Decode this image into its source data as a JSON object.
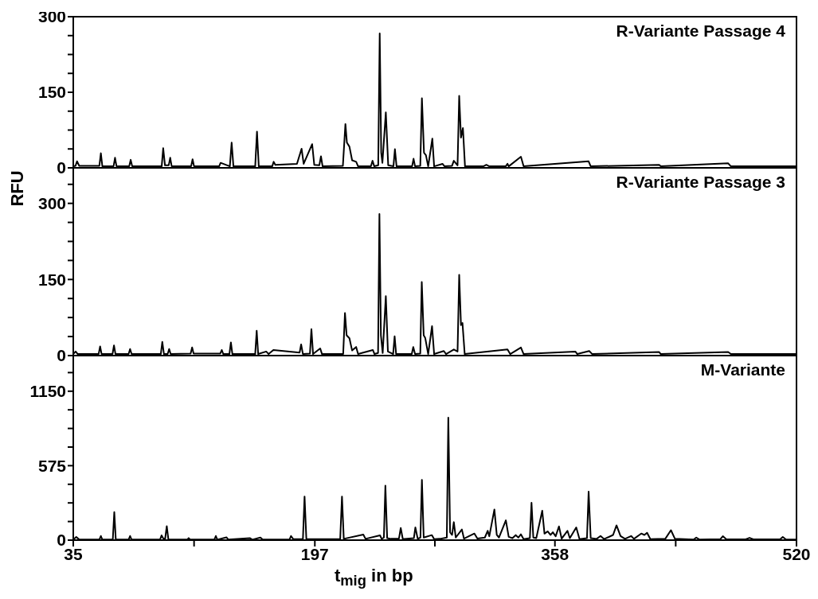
{
  "chart_data": [
    {
      "type": "line",
      "title": "R-Variante Passage 4",
      "xlim": [
        35,
        520
      ],
      "ylim": [
        0,
        300
      ],
      "yticks": [
        0,
        {
          "value": 37.5,
          "label": null
        },
        {
          "value": 75,
          "label": null
        },
        {
          "value": 112.5,
          "label": null
        },
        150,
        {
          "value": 187.5,
          "label": null
        },
        {
          "value": 225,
          "label": null
        },
        {
          "value": 262.5,
          "label": null
        },
        300
      ],
      "tick_labels": "y",
      "series": [
        {
          "color": "#000000",
          "x": [
            35,
            36.5,
            37.5,
            39,
            45,
            52.5,
            53.5,
            54.5,
            62,
            63,
            64,
            72.5,
            73.5,
            74.5,
            94.3,
            95.3,
            96.5,
            99,
            100,
            101,
            114,
            115,
            116,
            132.8,
            133.8,
            140,
            141.2,
            142.4,
            157,
            158.2,
            159.4,
            168.4,
            169.4,
            170.5,
            185,
            188.1,
            189.5,
            195.2,
            196.6,
            200,
            201.1,
            202.2,
            215.8,
            217.5,
            218.5,
            220.2,
            222,
            224.7,
            226,
            234.6,
            235.7,
            236.8,
            239.5,
            240.5,
            241.5,
            242.3,
            244.6,
            246.2,
            249.7,
            250.7,
            251.8,
            262.2,
            263.2,
            264.2,
            267.7,
            268.8,
            270.2,
            271.5,
            273,
            275.8,
            277,
            282.6,
            284,
            289,
            290.2,
            292.7,
            293.8,
            295,
            296.3,
            297.7,
            310,
            312,
            314,
            325,
            326.2,
            327,
            335.2,
            337,
            380.6,
            382,
            427.9,
            429,
            474.2,
            476,
            520
          ],
          "values": [
            3,
            4,
            13,
            4,
            4,
            4,
            29,
            3,
            3,
            20,
            3,
            3,
            16,
            3,
            3,
            39,
            5,
            5,
            20,
            3,
            3,
            17,
            3,
            3,
            10,
            3,
            50,
            3,
            3,
            72,
            3,
            3,
            12,
            6,
            8,
            38,
            8,
            47,
            6,
            5,
            23,
            3,
            4,
            87,
            50,
            42,
            15,
            12,
            3,
            3,
            14,
            3,
            5,
            267,
            30,
            10,
            110,
            5,
            3,
            37,
            3,
            3,
            18,
            3,
            4,
            138,
            30,
            25,
            3,
            58,
            3,
            8,
            3,
            4,
            14,
            5,
            143,
            60,
            79,
            3,
            3,
            6,
            3,
            3,
            8,
            3,
            22,
            3,
            13,
            3,
            6,
            3,
            9,
            3,
            3
          ]
        }
      ]
    },
    {
      "type": "line",
      "title": "R-Variante Passage 3",
      "ylabel": "RFU",
      "xlim": [
        35,
        520
      ],
      "ylim": [
        0,
        370
      ],
      "yticks": [
        0,
        {
          "value": 37.5,
          "label": null
        },
        {
          "value": 75,
          "label": null
        },
        {
          "value": 112.5,
          "label": null
        },
        150,
        {
          "value": 187.5,
          "label": null
        },
        {
          "value": 225,
          "label": null
        },
        {
          "value": 262.5,
          "label": null
        },
        300,
        {
          "value": 337.5,
          "label": null
        }
      ],
      "tick_labels": "y",
      "series": [
        {
          "color": "#000000",
          "x": [
            35,
            36.6,
            38,
            52,
            53,
            54,
            61.3,
            62.3,
            63.3,
            72.1,
            73.1,
            74.1,
            93.7,
            94.7,
            95.8,
            98.3,
            99.3,
            100.3,
            113.7,
            114.7,
            115.7,
            133.6,
            134.6,
            135.6,
            139.7,
            140.7,
            141.7,
            157,
            158,
            159,
            164.4,
            166,
            169.2,
            186.8,
            187.8,
            189,
            193.7,
            194.7,
            195.8,
            200.6,
            201.8,
            216,
            217.2,
            218.3,
            220.2,
            222,
            224.7,
            226,
            235.9,
            237,
            239.4,
            240.3,
            241.3,
            242.5,
            244.6,
            246,
            249.5,
            250.5,
            251.5,
            262,
            263,
            264.2,
            267.7,
            268.7,
            270,
            271,
            273,
            275.6,
            277,
            283.5,
            285,
            290.2,
            292.7,
            293.8,
            295,
            296,
            297.5,
            326.2,
            328,
            335.2,
            337,
            371.7,
            373,
            381,
            383,
            427.9,
            429,
            474.2,
            476,
            520
          ],
          "values": [
            3,
            8,
            3,
            3,
            18,
            3,
            3,
            20,
            3,
            3,
            13,
            3,
            3,
            27,
            3,
            3,
            13,
            3,
            4,
            16,
            4,
            4,
            11,
            3,
            3,
            26,
            3,
            3,
            49,
            3,
            8,
            3,
            11,
            6,
            22,
            3,
            4,
            52,
            3,
            14,
            3,
            3,
            84,
            40,
            34,
            10,
            17,
            3,
            11,
            3,
            5,
            279,
            40,
            5,
            117,
            8,
            3,
            38,
            3,
            3,
            17,
            3,
            4,
            145,
            40,
            35,
            3,
            58,
            3,
            9,
            3,
            12,
            8,
            159,
            60,
            64,
            3,
            12,
            3,
            16,
            3,
            8,
            3,
            9,
            3,
            7,
            3,
            7,
            3,
            3
          ]
        }
      ]
    },
    {
      "type": "line",
      "title": "M-Variante",
      "xlabel": "t$_{mig}$ in bp",
      "xlim": [
        35,
        520
      ],
      "xticks": [
        35,
        {
          "value": 116,
          "label": null
        },
        197,
        {
          "value": 277.5,
          "label": null
        },
        358,
        {
          "value": 439,
          "label": null
        },
        520
      ],
      "ylim": [
        0,
        1425
      ],
      "yticks": [
        0,
        {
          "value": 143.75,
          "label": null
        },
        {
          "value": 287.5,
          "label": null
        },
        {
          "value": 431.25,
          "label": null
        },
        575,
        {
          "value": 718.75,
          "label": null
        },
        {
          "value": 862.5,
          "label": null
        },
        {
          "value": 1006.25,
          "label": null
        },
        1150,
        {
          "value": 1293.75,
          "label": null
        }
      ],
      "series": [
        {
          "color": "#000000",
          "x": [
            35,
            37,
            39,
            52.5,
            53.5,
            54.5,
            61.5,
            62.5,
            63.5,
            72.1,
            73.1,
            74.1,
            93.2,
            94.2,
            95.5,
            96.6,
            97.7,
            98.8,
            111.4,
            112.4,
            113.4,
            129.6,
            130.6,
            131.6,
            137.7,
            139,
            153.4,
            155,
            160.5,
            162,
            180,
            181,
            182.5,
            189,
            190.1,
            191.3,
            214,
            215.2,
            216.4,
            229.5,
            231,
            240.7,
            241.8,
            243.3,
            244.3,
            245.5,
            248,
            253.4,
            254.6,
            256,
            263.4,
            264.4,
            266,
            267.8,
            268.8,
            270,
            275.5,
            277,
            281,
            285.5,
            286.5,
            287.7,
            289,
            290.2,
            291.5,
            295.6,
            297,
            304,
            306,
            311,
            312.9,
            314,
            317.4,
            319,
            320.5,
            325.1,
            327,
            329.5,
            331.7,
            333.5,
            335.2,
            337,
            341.2,
            342.3,
            343.5,
            345.5,
            349.5,
            351,
            353.1,
            355,
            356.6,
            358.5,
            360.7,
            362.5,
            366.4,
            368,
            372.3,
            374.5,
            379.5,
            380.6,
            382,
            386,
            388.6,
            391,
            397,
            399.3,
            402,
            405,
            409.1,
            411,
            415.9,
            418,
            419.8,
            422,
            432,
            435.8,
            438.5,
            451,
            452.8,
            455,
            469,
            470.6,
            473,
            486,
            488.5,
            491,
            509,
            510.8,
            513,
            520
          ],
          "values": [
            4,
            25,
            4,
            4,
            32,
            4,
            4,
            216,
            4,
            4,
            32,
            4,
            4,
            37,
            10,
            10,
            108,
            4,
            4,
            16,
            4,
            4,
            32,
            4,
            22,
            4,
            16,
            4,
            20,
            4,
            4,
            32,
            8,
            8,
            337,
            8,
            8,
            337,
            10,
            43,
            10,
            37,
            10,
            20,
            421,
            15,
            10,
            12,
            94,
            8,
            15,
            98,
            10,
            20,
            466,
            20,
            39,
            8,
            10,
            20,
            946,
            60,
            40,
            139,
            20,
            82,
            12,
            51,
            12,
            20,
            72,
            30,
            237,
            41,
            20,
            153,
            25,
            15,
            39,
            20,
            45,
            8,
            15,
            288,
            20,
            15,
            227,
            50,
            68,
            40,
            61,
            30,
            106,
            12,
            72,
            15,
            98,
            8,
            15,
            374,
            15,
            10,
            32,
            8,
            40,
            114,
            32,
            10,
            32,
            10,
            51,
            40,
            57,
            8,
            10,
            77,
            10,
            4,
            20,
            4,
            8,
            30,
            6,
            6,
            18,
            6,
            6,
            25,
            5,
            5
          ]
        }
      ]
    }
  ]
}
